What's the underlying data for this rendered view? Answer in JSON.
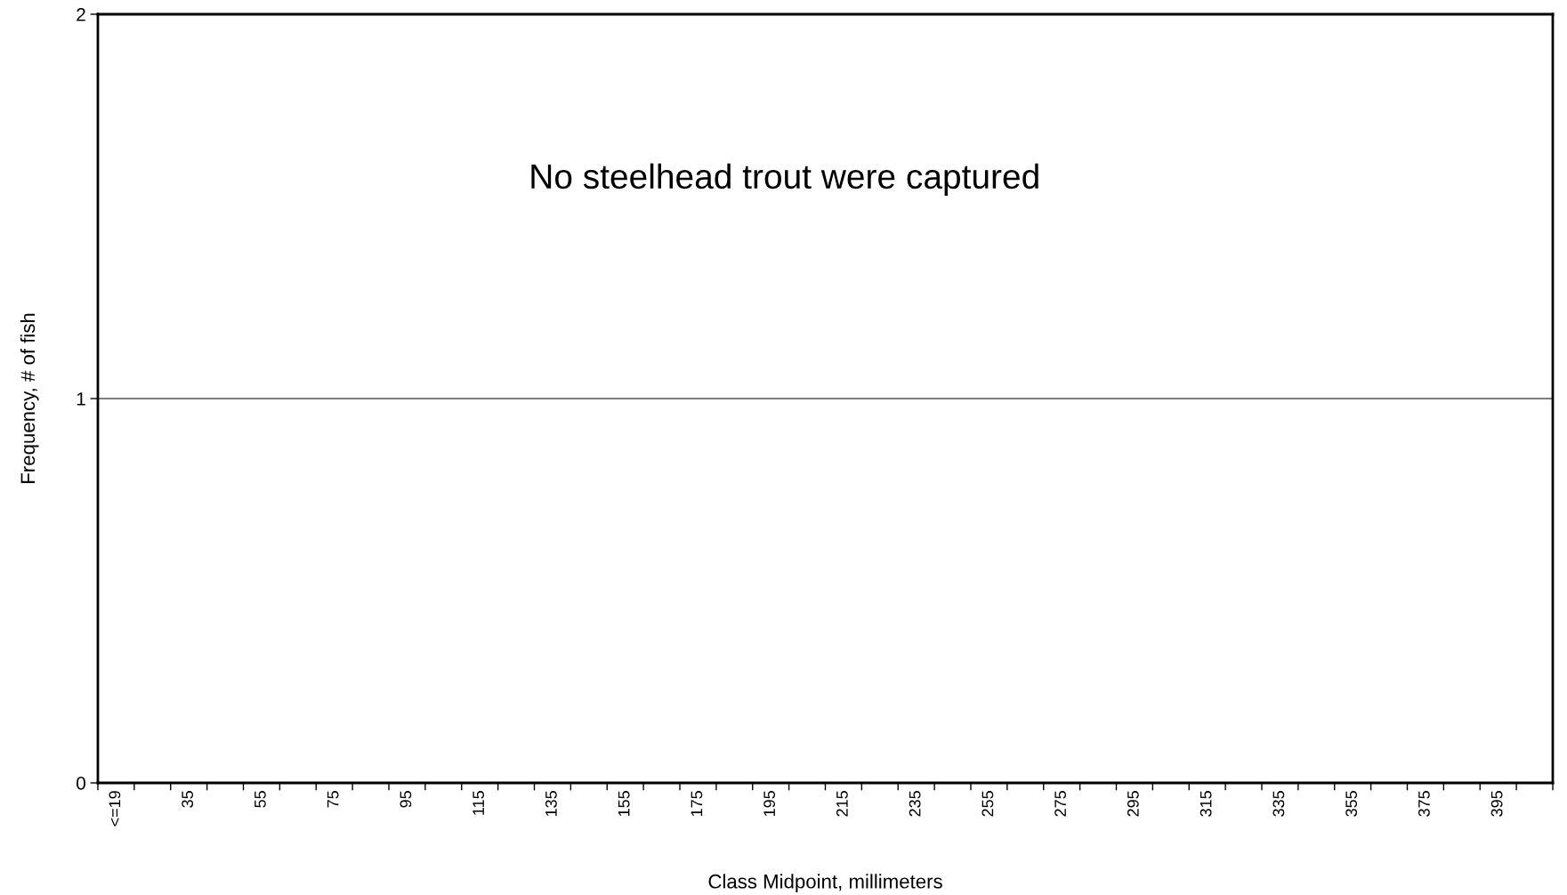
{
  "chart_data": {
    "type": "bar",
    "xlabel": "Class Midpoint, millimeters",
    "ylabel": "Frequency, # of fish",
    "categories": [
      "<=19",
      null,
      "35",
      null,
      "55",
      null,
      "75",
      null,
      "95",
      null,
      "115",
      null,
      "135",
      null,
      "155",
      null,
      "175",
      null,
      "195",
      null,
      "215",
      null,
      "235",
      null,
      "255",
      null,
      "275",
      null,
      "295",
      null,
      "315",
      null,
      "335",
      null,
      "355",
      null,
      "375",
      null,
      "395",
      null
    ],
    "values": [
      0,
      0,
      0,
      0,
      0,
      0,
      0,
      0,
      0,
      0,
      0,
      0,
      0,
      0,
      0,
      0,
      0,
      0,
      0,
      0,
      0,
      0,
      0,
      0,
      0,
      0,
      0,
      0,
      0,
      0,
      0,
      0,
      0,
      0,
      0,
      0,
      0,
      0,
      0,
      0
    ],
    "ylim": [
      0,
      2
    ],
    "yticks": [
      0,
      1,
      2
    ],
    "grid": "y",
    "annotations": [
      "No steelhead trout were captured"
    ]
  }
}
